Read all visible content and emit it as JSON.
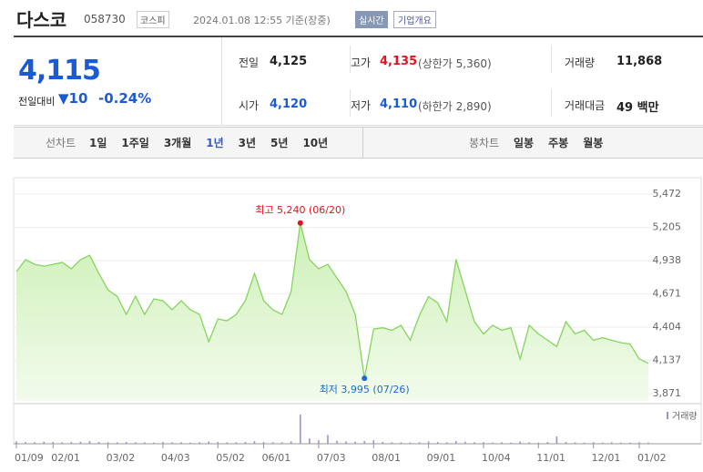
{
  "header": {
    "name": "다스코",
    "code": "058730",
    "market": "코스피",
    "time": "2024.01.08 12:55 기준(장중)",
    "realtime": "실시간",
    "overview": "기업개요"
  },
  "quote": {
    "price": "4,115",
    "change_label": "전일대비",
    "change": "10",
    "change_pct": "-0.24%",
    "rows": [
      [
        {
          "label": "전일",
          "value": "4,125"
        },
        {
          "label": "고가",
          "value": "4,135",
          "sub": "(상한가 5,360)"
        },
        {
          "label": "거래량",
          "value": "11,868"
        }
      ],
      [
        {
          "label": "시가",
          "value": "4,120"
        },
        {
          "label": "저가",
          "value": "4,110",
          "sub": "(하한가 2,890)"
        },
        {
          "label": "거래대금",
          "value": "49 백만"
        }
      ]
    ]
  },
  "tabs": {
    "line_label": "선차트",
    "line": [
      "1일",
      "1주일",
      "3개월",
      "1년",
      "3년",
      "5년",
      "10년"
    ],
    "candle_label": "봉차트",
    "candle": [
      "일봉",
      "주봉",
      "월봉"
    ]
  },
  "chart_data": {
    "type": "line",
    "color": "#86d45f",
    "categories": [
      "01/09",
      null,
      null,
      null,
      "02/01",
      null,
      null,
      null,
      null,
      null,
      "03/02",
      null,
      null,
      null,
      null,
      null,
      "04/03",
      null,
      null,
      null,
      null,
      null,
      "05/02",
      null,
      null,
      null,
      null,
      "06/01",
      null,
      null,
      null,
      null,
      null,
      "07/03",
      null,
      null,
      null,
      null,
      null,
      "08/01",
      null,
      null,
      null,
      null,
      null,
      "09/01",
      null,
      null,
      null,
      null,
      null,
      "10/04",
      null,
      null,
      null,
      null,
      null,
      "11/01",
      null,
      null,
      null,
      null,
      null,
      "12/01",
      null,
      null,
      null,
      null,
      "01/02",
      null
    ],
    "values": [
      4850,
      4946,
      4909,
      4894,
      4909,
      4924,
      4873,
      4946,
      4982,
      4836,
      4704,
      4653,
      4507,
      4653,
      4507,
      4631,
      4617,
      4544,
      4617,
      4544,
      4507,
      4288,
      4471,
      4456,
      4507,
      4617,
      4836,
      4617,
      4544,
      4507,
      4690,
      5240,
      4946,
      4873,
      4909,
      4799,
      4690,
      4507,
      3995,
      4390,
      4400,
      4380,
      4420,
      4300,
      4500,
      4650,
      4600,
      4450,
      4950,
      4700,
      4450,
      4350,
      4420,
      4380,
      4400,
      4150,
      4420,
      4350,
      4300,
      4250,
      4450,
      4350,
      4380,
      4300,
      4320,
      4300,
      4280,
      4270,
      4150,
      4115
    ],
    "ylim": [
      3813,
      5604
    ],
    "yticks": [
      {
        "value": 3871,
        "label": "3,871"
      },
      {
        "value": 4137,
        "label": "4,137"
      },
      {
        "value": 4404,
        "label": "4,404"
      },
      {
        "value": 4671,
        "label": "4,671"
      },
      {
        "value": 4938,
        "label": "4,938"
      },
      {
        "value": 5205,
        "label": "5,205"
      },
      {
        "value": 5472,
        "label": "5,472"
      }
    ],
    "annotations": [
      {
        "text": "최고 5,240 (06/20)",
        "index": 31,
        "color": "#e0141e"
      },
      {
        "text": "최저 3,995 (07/26)",
        "index": 38,
        "color": "#1a6ad6"
      }
    ],
    "volume": {
      "name": "거래량",
      "color": "#a48ad8",
      "ylim": [
        0,
        100
      ],
      "values": [
        8,
        6,
        5,
        7,
        6,
        5,
        6,
        7,
        9,
        6,
        5,
        5,
        6,
        5,
        5,
        4,
        6,
        5,
        5,
        4,
        5,
        8,
        6,
        5,
        5,
        6,
        9,
        6,
        5,
        5,
        8,
        100,
        18,
        12,
        30,
        10,
        8,
        7,
        9,
        12,
        6,
        5,
        5,
        4,
        5,
        8,
        6,
        5,
        9,
        7,
        5,
        5,
        4,
        5,
        4,
        8,
        5,
        4,
        6,
        25,
        6,
        5,
        4,
        5,
        4,
        5,
        4,
        4,
        5,
        4
      ]
    }
  }
}
